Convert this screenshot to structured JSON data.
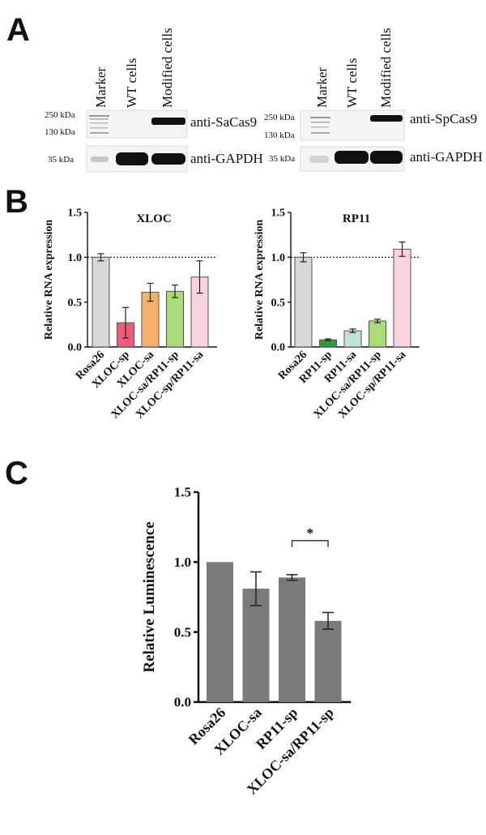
{
  "panels": {
    "a": "A",
    "b": "B",
    "c": "C"
  },
  "blots": [
    {
      "lane_labels": [
        "Marker",
        "WT cells",
        "Modified cells"
      ],
      "top_label": "anti-SaCas9",
      "bottom_label": "anti-GAPDH",
      "top_markers": [
        "250 kDa",
        "130 kDa"
      ],
      "bottom_markers": [
        "35 kDa"
      ]
    },
    {
      "lane_labels": [
        "Marker",
        "WT cells",
        "Modified cells"
      ],
      "top_label": "anti-SpCas9",
      "bottom_label": "anti-GAPDH",
      "top_markers": [
        "250 kDa",
        "130 kDa"
      ],
      "bottom_markers": [
        "35 kDa"
      ]
    }
  ],
  "chart_data": [
    {
      "type": "bar",
      "title": "XLOC",
      "ylabel": "Relative RNA expression",
      "ylim": [
        0,
        1.5
      ],
      "yticks": [
        "0.0",
        "0.5",
        "1.0",
        "1.5"
      ],
      "reference_line": 1.0,
      "categories": [
        "Rosa26",
        "XLOC-sp",
        "XLOC-sa",
        "XLOC-sa/RP11-sp",
        "XLOC-sp/RP11-sa"
      ],
      "values": [
        1.0,
        0.27,
        0.61,
        0.62,
        0.78
      ],
      "errors": [
        0.04,
        0.17,
        0.1,
        0.07,
        0.18
      ],
      "colors": [
        "#d9d7d5",
        "#ee5a78",
        "#f7b067",
        "#a9dc78",
        "#f8d3dc"
      ]
    },
    {
      "type": "bar",
      "title": "RP11",
      "ylabel": "Relative RNA expression",
      "ylim": [
        0,
        1.5
      ],
      "yticks": [
        "0.0",
        "0.5",
        "1.0",
        "1.5"
      ],
      "reference_line": 1.0,
      "categories": [
        "Rosa26",
        "RP11-sp",
        "RP11-sa",
        "XLOC-sa/RP11-sp",
        "XLOC-sp/RP11-sa"
      ],
      "values": [
        1.0,
        0.08,
        0.18,
        0.29,
        1.09
      ],
      "errors": [
        0.05,
        0.01,
        0.02,
        0.02,
        0.08
      ],
      "colors": [
        "#d9d7d5",
        "#2da135",
        "#bfe6d2",
        "#a9dc78",
        "#f8d3dc"
      ]
    },
    {
      "type": "bar",
      "title": "",
      "ylabel": "Relative Luminescence",
      "ylim": [
        0,
        1.5
      ],
      "yticks": [
        "0.0",
        "0.5",
        "1.0",
        "1.5"
      ],
      "categories": [
        "Rosa26",
        "XLOC-sa",
        "RP11-sp",
        "XLOC-sa/RP11-sp"
      ],
      "values": [
        1.0,
        0.81,
        0.89,
        0.58
      ],
      "errors": [
        0.0,
        0.12,
        0.02,
        0.06
      ],
      "colors": [
        "#7a7a7a",
        "#7a7a7a",
        "#7a7a7a",
        "#7a7a7a"
      ],
      "significance": {
        "label": "*",
        "between": [
          2,
          3
        ]
      }
    }
  ]
}
